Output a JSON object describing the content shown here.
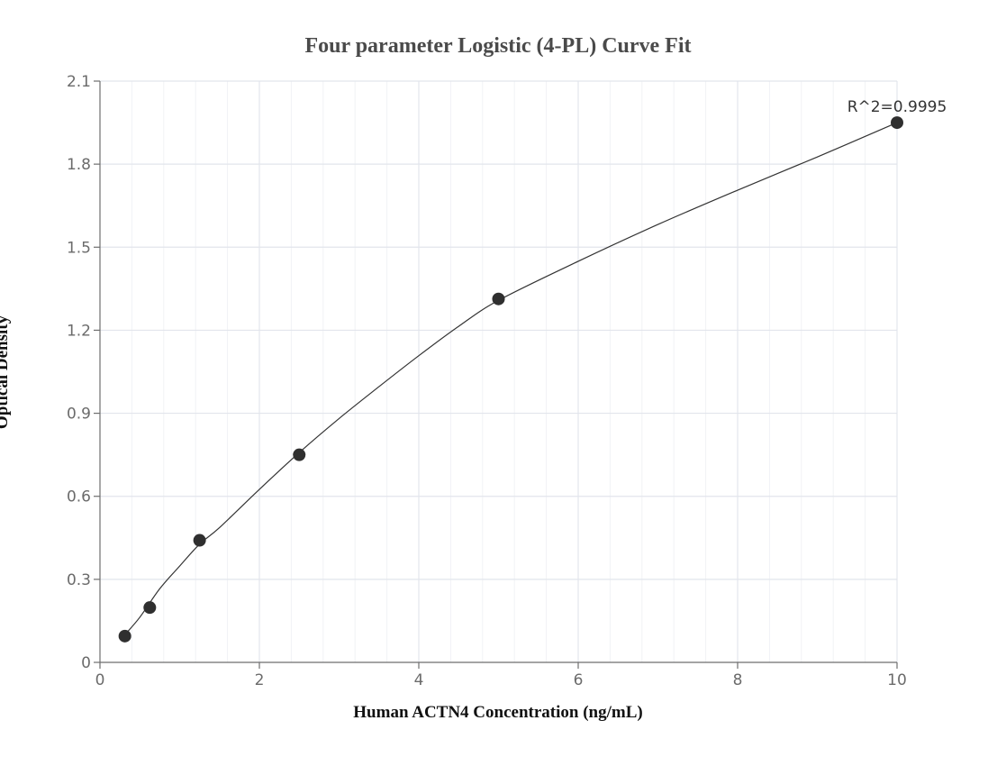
{
  "chart_data": {
    "type": "scatter",
    "title": "Four parameter Logistic (4-PL) Curve Fit",
    "xlabel": "Human ACTN4 Concentration (ng/mL)",
    "ylabel": "Optical Density",
    "xlim": [
      0,
      10
    ],
    "ylim": [
      0,
      2.1
    ],
    "x_ticks": [
      0,
      2,
      4,
      6,
      8,
      10
    ],
    "x_tick_labels": [
      "0",
      "2",
      "4",
      "6",
      "8",
      "10"
    ],
    "y_ticks": [
      0,
      0.3,
      0.6,
      0.9,
      1.2,
      1.5,
      1.8,
      2.1
    ],
    "y_tick_labels": [
      "0",
      "0.3",
      "0.6",
      "0.9",
      "1.2",
      "1.5",
      "1.8",
      "2.1"
    ],
    "grid": true,
    "series": [
      {
        "x": [
          0.3125,
          0.625,
          1.25,
          2.5,
          5,
          10
        ],
        "y": [
          0.095,
          0.198,
          0.441,
          0.75,
          1.313,
          1.95
        ]
      }
    ],
    "fit_curve": {
      "model": "4PL",
      "x": [
        0.3125,
        0.5,
        0.75,
        1,
        1.25,
        1.5,
        2,
        2.5,
        3,
        3.5,
        4,
        4.5,
        5,
        6,
        7,
        8,
        9,
        10
      ],
      "y": [
        0.1,
        0.163,
        0.266,
        0.348,
        0.427,
        0.487,
        0.625,
        0.758,
        0.881,
        0.996,
        1.108,
        1.214,
        1.308,
        1.449,
        1.582,
        1.706,
        1.826,
        1.95
      ]
    },
    "annotations": [
      {
        "text": "R^2=0.9995",
        "x": 10,
        "y": 1.95
      }
    ],
    "colors": {
      "points": "#2f2f2f",
      "curve": "#333333",
      "grid": "#e2e5ec",
      "grid_minor": "#f1f2f6",
      "axis": "#6e6e6e",
      "title": "#4a4a4a"
    }
  }
}
